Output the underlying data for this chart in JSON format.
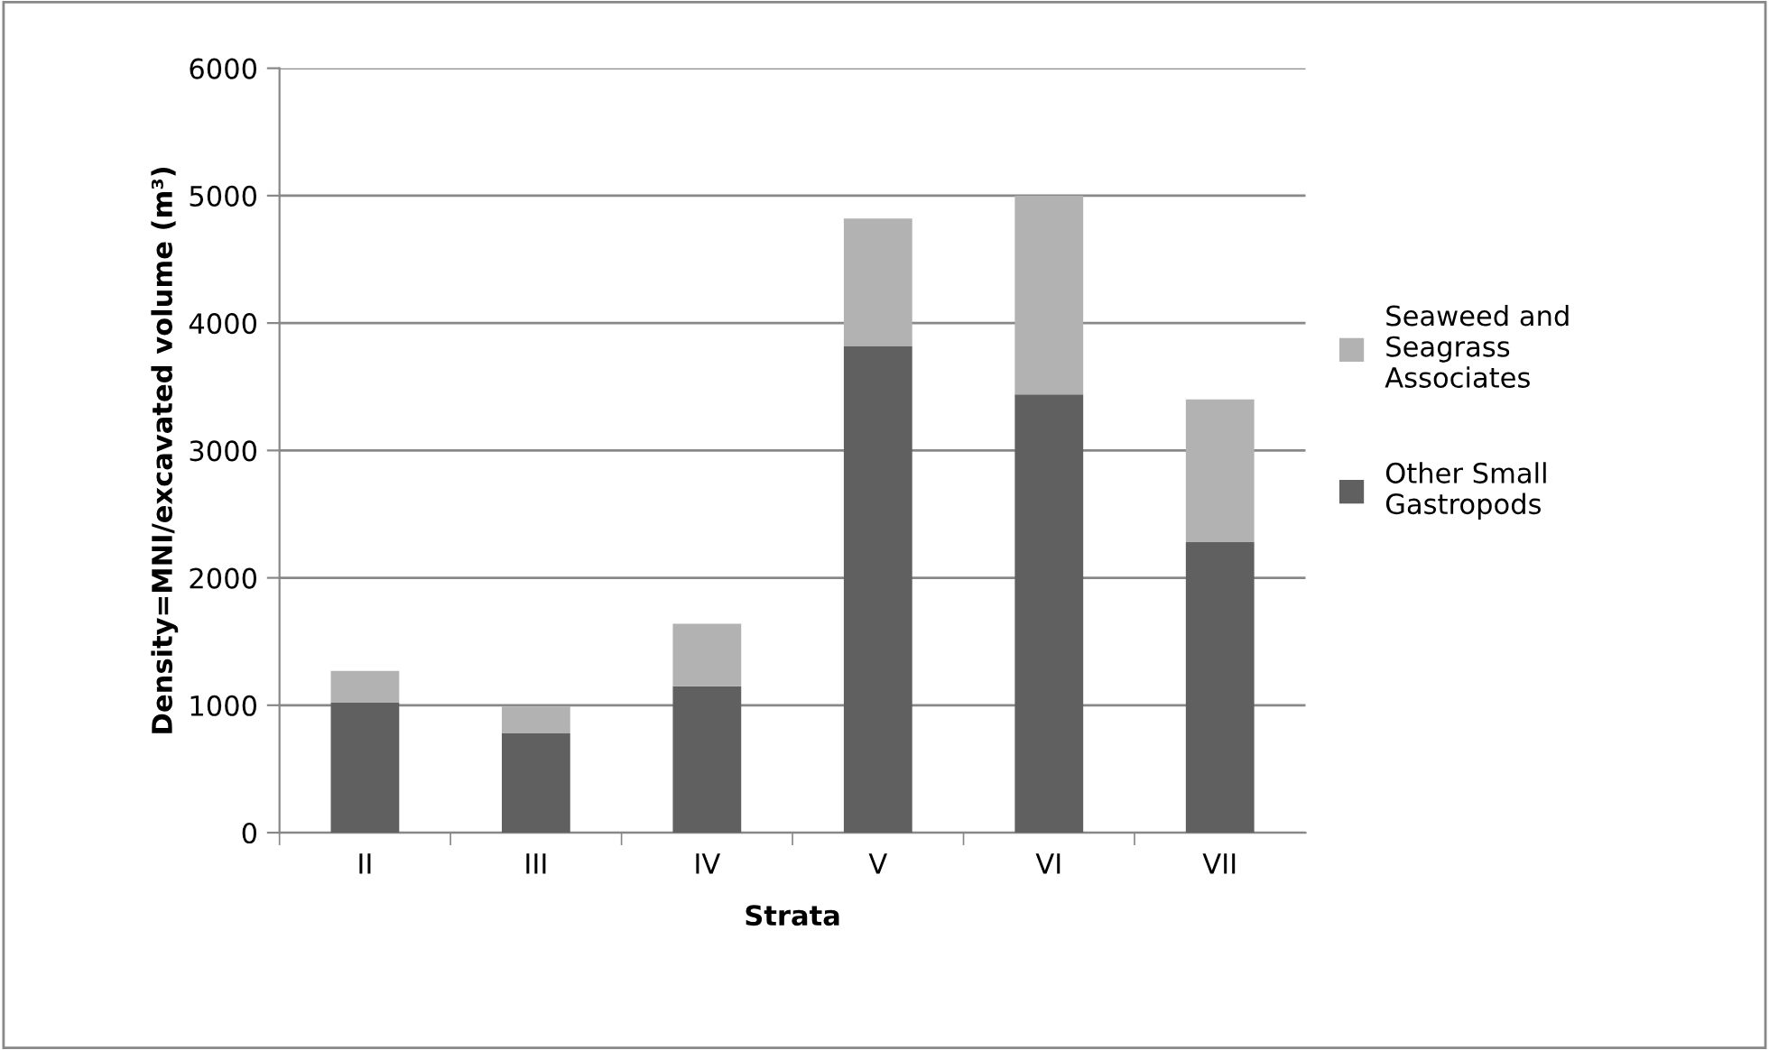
{
  "chart_data": {
    "type": "bar",
    "stacked": true,
    "xlabel": "Strata",
    "ylabel": "Density=MNI/excavated volume (m³)",
    "categories": [
      "II",
      "III",
      "IV",
      "V",
      "VI",
      "VII"
    ],
    "series": [
      {
        "name": "Other Small Gastropods",
        "color": "#606060",
        "values": [
          1020,
          780,
          1150,
          3820,
          3440,
          2280
        ]
      },
      {
        "name": "Seaweed and Seagrass Associates",
        "color": "#b2b2b2",
        "values": [
          250,
          210,
          490,
          1000,
          1560,
          1120
        ]
      }
    ],
    "ylim": [
      0,
      6000
    ],
    "yticks": [
      0,
      1000,
      2000,
      3000,
      4000,
      5000,
      6000
    ],
    "grid": "y",
    "legend": "right"
  }
}
